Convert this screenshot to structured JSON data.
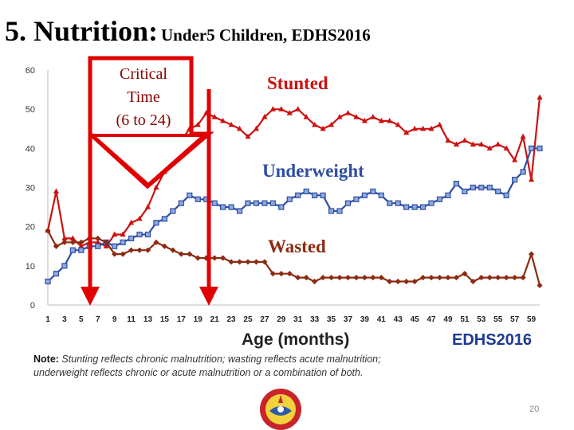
{
  "slide": {
    "title": "5. Nutrition:",
    "subtitle": "Under5 Children, EDHS2016",
    "note_label": "Note:",
    "note_line1": " Stunting reflects chronic malnutrition; wasting reflects acute malnutrition;",
    "note_line2": "underweight reflects chronic or acute malnutrition or a combination of both.",
    "page_number": "20",
    "source": "EDHS2016",
    "critical_label": [
      "Critical",
      "Time",
      "(6 to 24)"
    ]
  },
  "colors": {
    "stunted": "#cc1111",
    "underweight": "#2e4ea3",
    "wasted": "#8b2a10",
    "arrow": "#e00000"
  },
  "chart_data": {
    "type": "line",
    "xlabel": "Age (months)",
    "ylabel": "",
    "ylim": [
      0,
      60
    ],
    "yticks": [
      0,
      10,
      20,
      30,
      40,
      50,
      60
    ],
    "x_tick_labels": [
      1,
      3,
      5,
      7,
      9,
      11,
      13,
      15,
      17,
      19,
      21,
      23,
      25,
      27,
      29,
      31,
      33,
      35,
      37,
      39,
      41,
      43,
      45,
      47,
      49,
      51,
      53,
      55,
      57,
      59
    ],
    "x": [
      1,
      2,
      3,
      4,
      5,
      6,
      7,
      8,
      9,
      10,
      11,
      12,
      13,
      14,
      15,
      16,
      17,
      18,
      19,
      20,
      21,
      22,
      23,
      24,
      25,
      26,
      27,
      28,
      29,
      30,
      31,
      32,
      33,
      34,
      35,
      36,
      37,
      38,
      39,
      40,
      41,
      42,
      43,
      44,
      45,
      46,
      47,
      48,
      49,
      50,
      51,
      52,
      53,
      54,
      55,
      56,
      57,
      58,
      59,
      60
    ],
    "series": [
      {
        "name": "Stunted",
        "values": [
          19,
          29,
          17,
          17,
          15,
          16,
          16,
          15,
          18,
          18,
          21,
          22,
          25,
          30,
          34,
          37,
          42,
          45,
          46,
          49,
          48,
          47,
          46,
          45,
          43,
          45,
          48,
          50,
          50,
          49,
          50,
          48,
          46,
          45,
          46,
          48,
          49,
          48,
          47,
          48,
          47,
          47,
          46,
          44,
          45,
          45,
          45,
          46,
          42,
          41,
          42,
          41,
          41,
          40,
          41,
          40,
          37,
          43,
          32,
          53
        ]
      },
      {
        "name": "Underweight",
        "values": [
          6,
          8,
          10,
          14,
          14,
          15,
          15,
          16,
          15,
          16,
          17,
          18,
          18,
          21,
          22,
          24,
          26,
          28,
          27,
          27,
          26,
          25,
          25,
          24,
          26,
          26,
          26,
          26,
          25,
          27,
          28,
          29,
          28,
          28,
          24,
          24,
          26,
          27,
          28,
          29,
          28,
          26,
          26,
          25,
          25,
          25,
          26,
          27,
          28,
          31,
          29,
          30,
          30,
          30,
          29,
          28,
          32,
          34,
          40,
          40
        ]
      },
      {
        "name": "Wasted",
        "values": [
          19,
          15,
          16,
          16,
          16,
          17,
          17,
          16,
          13,
          13,
          14,
          14,
          14,
          16,
          15,
          14,
          13,
          13,
          12,
          12,
          12,
          12,
          11,
          11,
          11,
          11,
          11,
          8,
          8,
          8,
          7,
          7,
          6,
          7,
          7,
          7,
          7,
          7,
          7,
          7,
          7,
          6,
          6,
          6,
          6,
          7,
          7,
          7,
          7,
          7,
          8,
          6,
          7,
          7,
          7,
          7,
          7,
          7,
          13,
          5
        ]
      }
    ]
  }
}
